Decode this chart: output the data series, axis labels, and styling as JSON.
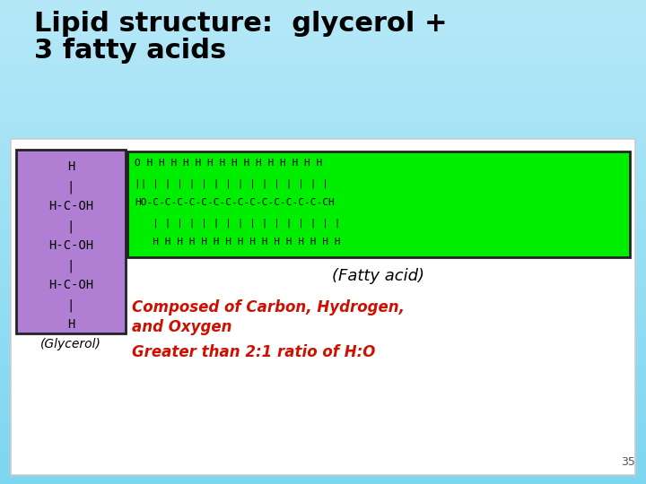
{
  "title_line1": "Lipid structure:  glycerol +",
  "title_line2": "3 fatty acids",
  "title_color": "#000000",
  "title_fontsize": 22,
  "bg_color_top": "#7dd6f0",
  "bg_color_mid": "#a8e4f5",
  "bg_color_bot": "#c5eefa",
  "white_panel_color": "#ffffff",
  "white_panel_border": "#cccccc",
  "glycerol_box_color": "#b07fd4",
  "glycerol_box_border": "#222222",
  "fatty_box_color": "#00ee00",
  "fatty_box_border": "#222222",
  "glycerol_label": "(Glycerol)",
  "fatty_label": "(Fatty acid)",
  "fatty_top": "O H H H H H H H H H H H H H H H",
  "fatty_mid_top": "|| | | | | | | | | | | | | | | |",
  "fatty_mid": "HO-C-C-C-C-C-C-C-C-C-C-C-C-C-C-CH",
  "fatty_mid_bot": "   | | | | | | | | | | | | | | | |",
  "fatty_bot": "   H H H H H H H H H H H H H H H H",
  "composed_line1": "Composed of Carbon, Hydrogen,",
  "composed_line2": "and Oxygen",
  "composed_color": "#cc1100",
  "greater_text": "Greater than 2:1 ratio of H:O",
  "greater_color": "#cc1100",
  "slide_number": "35",
  "slide_num_color": "#555555"
}
